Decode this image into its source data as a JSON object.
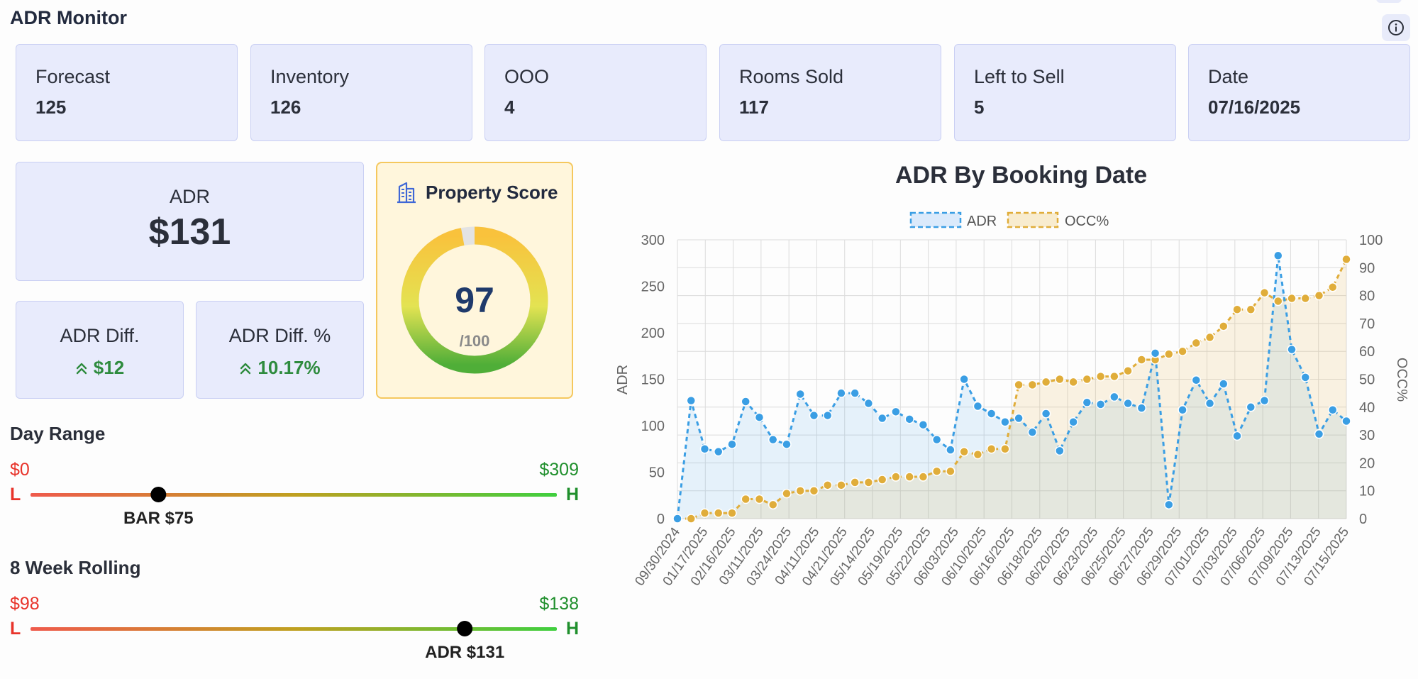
{
  "app": {
    "title": "ADR Monitor"
  },
  "stats": [
    {
      "label": "Forecast",
      "value": "125"
    },
    {
      "label": "Inventory",
      "value": "126"
    },
    {
      "label": "OOO",
      "value": "4"
    },
    {
      "label": "Rooms Sold",
      "value": "117"
    },
    {
      "label": "Left to Sell",
      "value": "5"
    },
    {
      "label": "Date",
      "value": "07/16/2025"
    }
  ],
  "adr": {
    "label": "ADR",
    "value": "$131"
  },
  "adr_diff": {
    "label": "ADR Diff.",
    "value": "$12"
  },
  "adr_diff_pct": {
    "label": "ADR Diff. %",
    "value": "10.17%"
  },
  "property_score": {
    "title": "Property Score",
    "score": "97",
    "max": "/100",
    "fraction": 0.97
  },
  "day_range": {
    "title": "Day Range",
    "low": "$0",
    "high": "$309",
    "low_letter": "L",
    "high_letter": "H",
    "marker_label": "BAR $75",
    "marker_fraction": 0.243
  },
  "rolling": {
    "title": "8 Week Rolling",
    "low": "$98",
    "high": "$138",
    "low_letter": "L",
    "high_letter": "H",
    "marker_label": "ADR $131",
    "marker_fraction": 0.825
  },
  "colors": {
    "low": "#e8332a",
    "high": "#1f8f2c",
    "adr": "#3a9ee4",
    "occ": "#e0ad3a",
    "accent": "#3f67d6"
  },
  "icons": {
    "info": "info-icon",
    "building": "building-icon",
    "up": "double-chevron-up-icon"
  },
  "chart_data": {
    "type": "line",
    "title": "ADR By Booking Date",
    "ylabel": "ADR",
    "y2label": "OCC%",
    "ylim": [
      0,
      300
    ],
    "y2lim": [
      0,
      100
    ],
    "yticks": [
      0,
      50,
      100,
      150,
      200,
      250,
      300
    ],
    "y2ticks": [
      0,
      10,
      20,
      30,
      40,
      50,
      60,
      70,
      80,
      90,
      100
    ],
    "x_tick_labels": [
      "09/30/2024",
      "01/17/2025",
      "02/16/2025",
      "03/11/2025",
      "03/24/2025",
      "04/11/2025",
      "04/21/2025",
      "05/14/2025",
      "05/19/2025",
      "05/22/2025",
      "06/03/2025",
      "06/10/2025",
      "06/16/2025",
      "06/18/2025",
      "06/20/2025",
      "06/23/2025",
      "06/25/2025",
      "06/27/2025",
      "06/29/2025",
      "07/01/2025",
      "07/03/2025",
      "07/06/2025",
      "07/09/2025",
      "07/13/2025",
      "07/15/2025"
    ],
    "legend": "top",
    "grid": true,
    "series": [
      {
        "name": "ADR",
        "axis": "left",
        "values": [
          0,
          127,
          75,
          72,
          80,
          126,
          109,
          85,
          80,
          134,
          111,
          111,
          135,
          135,
          124,
          108,
          115,
          107,
          101,
          85,
          74,
          150,
          121,
          113,
          104,
          108,
          93,
          113,
          73,
          104,
          125,
          123,
          131,
          124,
          119,
          178,
          15,
          117,
          149,
          124,
          145,
          89,
          120,
          127,
          283,
          182,
          152,
          91,
          117,
          105
        ]
      },
      {
        "name": "OCC%",
        "axis": "right",
        "values": [
          0,
          0,
          2,
          2,
          2,
          7,
          7,
          5,
          9,
          10,
          10,
          12,
          12,
          13,
          13,
          14,
          15,
          15,
          15,
          17,
          17,
          24,
          23,
          25,
          25,
          48,
          48,
          49,
          50,
          49,
          50,
          51,
          51,
          53,
          57,
          57,
          59,
          60,
          63,
          65,
          69,
          75,
          75,
          81,
          78,
          79,
          79,
          80,
          83,
          93
        ]
      }
    ]
  }
}
